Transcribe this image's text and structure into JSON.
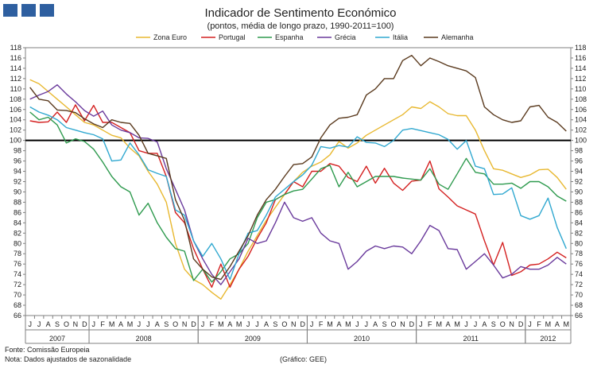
{
  "header": {
    "title": "Indicador de Sentimento Económico",
    "subtitle": "(pontos, média de longo prazo, 1990-2011=100)"
  },
  "colors": {
    "logo": "#2e5fa0",
    "Zona Euro": "#e8b830",
    "Portugal": "#d42020",
    "Espanha": "#2e9a4e",
    "Grécia": "#6a3a9c",
    "Itália": "#30a8d0",
    "Alemanha": "#5a3a1e",
    "reference_line": "#000000"
  },
  "footer": {
    "source": "Fonte: Comissão Europeia",
    "note": "Nota: Dados ajustados de sazonalidade",
    "credit": "(Gráfico: GEE)"
  },
  "chart_data": {
    "type": "line",
    "title": "Indicador de Sentimento Económico",
    "subtitle": "(pontos, média de longo prazo, 1990-2011=100)",
    "x": [
      "2007-06",
      "2007-07",
      "2007-08",
      "2007-09",
      "2007-10",
      "2007-11",
      "2007-12",
      "2008-01",
      "2008-02",
      "2008-03",
      "2008-04",
      "2008-05",
      "2008-06",
      "2008-07",
      "2008-08",
      "2008-09",
      "2008-10",
      "2008-11",
      "2008-12",
      "2009-01",
      "2009-02",
      "2009-03",
      "2009-04",
      "2009-05",
      "2009-06",
      "2009-07",
      "2009-08",
      "2009-09",
      "2009-10",
      "2009-11",
      "2009-12",
      "2010-01",
      "2010-02",
      "2010-03",
      "2010-04",
      "2010-05",
      "2010-06",
      "2010-07",
      "2010-08",
      "2010-09",
      "2010-10",
      "2010-11",
      "2010-12",
      "2011-01",
      "2011-02",
      "2011-03",
      "2011-04",
      "2011-05",
      "2011-06",
      "2011-07",
      "2011-08",
      "2011-09",
      "2011-10",
      "2011-11",
      "2011-12",
      "2012-01",
      "2012-02",
      "2012-03",
      "2012-04",
      "2012-05"
    ],
    "month_labels": [
      "J",
      "J",
      "A",
      "S",
      "O",
      "N",
      "D",
      "J",
      "F",
      "M",
      "A",
      "M",
      "J",
      "J",
      "A",
      "S",
      "O",
      "N",
      "D",
      "J",
      "F",
      "M",
      "A",
      "M",
      "J",
      "J",
      "A",
      "S",
      "O",
      "N",
      "D",
      "J",
      "F",
      "M",
      "A",
      "M",
      "J",
      "J",
      "A",
      "S",
      "O",
      "N",
      "D",
      "J",
      "F",
      "M",
      "A",
      "M",
      "J",
      "J",
      "A",
      "S",
      "O",
      "N",
      "D",
      "J",
      "F",
      "M",
      "A",
      "M"
    ],
    "year_labels": [
      {
        "label": "2007",
        "start": 0,
        "end": 6
      },
      {
        "label": "2008",
        "start": 7,
        "end": 18
      },
      {
        "label": "2009",
        "start": 19,
        "end": 30
      },
      {
        "label": "2010",
        "start": 31,
        "end": 42
      },
      {
        "label": "2011",
        "start": 43,
        "end": 54
      },
      {
        "label": "2012",
        "start": 55,
        "end": 59
      }
    ],
    "ylim": [
      66,
      118
    ],
    "yticks": [
      66,
      68,
      70,
      72,
      74,
      76,
      78,
      80,
      82,
      84,
      86,
      88,
      90,
      92,
      94,
      96,
      98,
      100,
      102,
      104,
      106,
      108,
      110,
      112,
      114,
      116,
      118
    ],
    "reference_line": 100,
    "grid": false,
    "legend_position": "top",
    "series": [
      {
        "name": "Zona Euro",
        "values": [
          111.8,
          111.0,
          109.5,
          108.0,
          106.5,
          105.0,
          103.5,
          103.0,
          102.0,
          101.0,
          100.5,
          98.5,
          97.0,
          94.0,
          91.5,
          88.0,
          80.0,
          75.0,
          73.0,
          72.0,
          70.5,
          69.2,
          72.0,
          75.0,
          78.5,
          81.5,
          84.5,
          87.0,
          89.5,
          92.0,
          93.8,
          95.0,
          95.8,
          97.2,
          99.8,
          98.5,
          99.5,
          101.0,
          102.0,
          103.0,
          104.0,
          105.0,
          106.5,
          106.2,
          107.5,
          106.5,
          105.2,
          104.8,
          104.8,
          102.0,
          98.0,
          94.5,
          94.2,
          93.5,
          92.8,
          93.3,
          94.3,
          94.4,
          92.8,
          90.5
        ]
      },
      {
        "name": "Portugal",
        "values": [
          103.8,
          103.5,
          103.6,
          105.5,
          103.5,
          106.9,
          103.8,
          106.8,
          103.5,
          103.5,
          102.5,
          101.5,
          98.0,
          97.5,
          97.5,
          93.0,
          86.0,
          84.0,
          79.0,
          75.0,
          71.5,
          76.0,
          71.5,
          75.0,
          77.5,
          81.0,
          84.0,
          88.5,
          89.5,
          92.0,
          91.0,
          94.0,
          94.0,
          95.5,
          95.0,
          92.8,
          92.0,
          95.0,
          91.7,
          94.6,
          91.7,
          90.3,
          92.1,
          92.3,
          96.0,
          90.6,
          89.0,
          87.3,
          86.5,
          85.7,
          80.5,
          75.8,
          80.2,
          73.8,
          74.5,
          75.8,
          76.0,
          77.0,
          78.3,
          77.2
        ]
      },
      {
        "name": "Espanha",
        "values": [
          105.5,
          104.0,
          104.5,
          103.0,
          99.5,
          100.3,
          99.8,
          98.3,
          95.8,
          93.0,
          91.0,
          90.0,
          85.5,
          87.8,
          84.0,
          81.2,
          79.0,
          78.5,
          72.8,
          75.0,
          72.5,
          74.5,
          77.0,
          78.0,
          80.0,
          85.0,
          88.0,
          88.5,
          89.5,
          90.2,
          90.5,
          92.5,
          94.5,
          95.2,
          91.0,
          93.8,
          91.0,
          92.0,
          93.0,
          93.0,
          93.0,
          92.7,
          92.5,
          92.3,
          94.5,
          91.5,
          90.5,
          93.5,
          96.5,
          93.8,
          93.5,
          91.5,
          91.5,
          91.7,
          90.7,
          92.0,
          92.0,
          91.0,
          89.2,
          88.2
        ]
      },
      {
        "name": "Grécia",
        "values": [
          108.0,
          108.8,
          109.5,
          110.8,
          109.0,
          107.5,
          105.8,
          104.7,
          105.7,
          103.0,
          102.0,
          101.5,
          100.5,
          100.4,
          99.7,
          94.5,
          90.5,
          86.5,
          80.5,
          77.0,
          74.0,
          72.0,
          74.5,
          77.0,
          81.0,
          80.0,
          80.5,
          84.0,
          88.0,
          85.0,
          84.3,
          85.0,
          82.0,
          80.5,
          80.0,
          75.0,
          76.5,
          78.5,
          79.5,
          79.0,
          79.5,
          79.3,
          78.0,
          80.5,
          83.5,
          82.5,
          79.0,
          78.8,
          75.0,
          76.5,
          78.0,
          75.8,
          73.3,
          74.0,
          75.5,
          75.0,
          75.0,
          75.8,
          77.3,
          76.0
        ]
      },
      {
        "name": "Itália",
        "values": [
          106.5,
          105.5,
          104.9,
          104.0,
          102.5,
          102.0,
          101.5,
          101.1,
          100.3,
          96.0,
          96.2,
          99.5,
          97.2,
          94.3,
          93.6,
          93.0,
          86.5,
          85.5,
          80.5,
          77.5,
          80.0,
          77.0,
          73.0,
          78.0,
          82.0,
          82.5,
          85.5,
          89.0,
          90.5,
          92.0,
          93.3,
          95.2,
          98.8,
          98.5,
          99.0,
          98.7,
          100.7,
          99.6,
          99.5,
          98.8,
          100.0,
          102.0,
          102.3,
          101.9,
          101.5,
          101.1,
          100.2,
          98.3,
          100.0,
          95.0,
          94.5,
          89.5,
          89.6,
          90.8,
          85.4,
          84.7,
          85.4,
          88.8,
          83.1,
          79.0
        ]
      },
      {
        "name": "Alemanha",
        "values": [
          110.3,
          108.0,
          107.7,
          105.9,
          105.8,
          105.4,
          104.2,
          103.2,
          102.5,
          104.0,
          103.5,
          103.3,
          101.0,
          97.5,
          97.0,
          96.5,
          88.5,
          84.5,
          77.0,
          75.0,
          73.5,
          73.0,
          75.5,
          78.5,
          81.5,
          85.5,
          88.5,
          90.5,
          93.0,
          95.3,
          95.5,
          96.8,
          100.5,
          103.0,
          104.3,
          104.5,
          105.0,
          108.8,
          110.0,
          112.0,
          112.0,
          115.5,
          116.5,
          114.5,
          116.0,
          115.3,
          114.5,
          114.0,
          113.5,
          112.2,
          106.5,
          105.0,
          104.0,
          103.5,
          103.8,
          106.5,
          106.8,
          104.5,
          103.5,
          101.8
        ]
      }
    ]
  }
}
